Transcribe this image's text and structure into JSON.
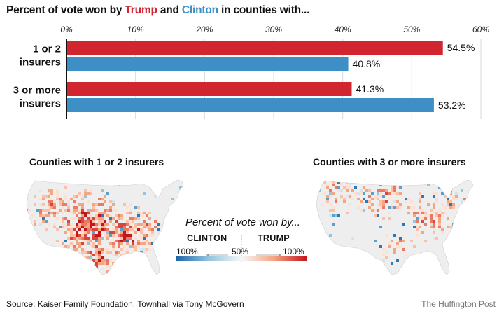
{
  "title": {
    "prefix": "Percent of vote won by ",
    "trump": "Trump",
    "middle": " and ",
    "clinton": "Clinton",
    "suffix": " in counties with..."
  },
  "colors": {
    "trump": "#d1262f",
    "clinton": "#3d8fc6"
  },
  "chart_data": {
    "type": "bar",
    "orientation": "horizontal",
    "categories": [
      [
        "1 or 2",
        "insurers"
      ],
      [
        "3 or more",
        "insurers"
      ]
    ],
    "series": [
      {
        "name": "Trump",
        "values": [
          54.5,
          41.3
        ],
        "labels": [
          "54.5%",
          "41.3%"
        ]
      },
      {
        "name": "Clinton",
        "values": [
          40.8,
          53.2
        ],
        "labels": [
          "40.8%",
          "53.2%"
        ]
      }
    ],
    "xlim": [
      0,
      60
    ],
    "xticks": [
      0,
      10,
      20,
      30,
      40,
      50,
      60
    ],
    "xtick_labels": [
      "0%",
      "10%",
      "20%",
      "30%",
      "40%",
      "50%",
      "60%"
    ],
    "grid": true,
    "axis_position": "top"
  },
  "maps": {
    "left_title": "Counties with 1 or 2 insurers",
    "right_title": "Counties with 3 or more insurers"
  },
  "legend": {
    "title": "Percent of vote won by...",
    "left_label": "CLINTON",
    "right_label": "TRUMP",
    "left_pct": "100%",
    "mid_pct": "50%",
    "right_pct": "100%"
  },
  "footer": {
    "source": "Source: Kaiser Family Foundation, Townhall via Tony McGovern",
    "credit": "The Huffington Post"
  }
}
